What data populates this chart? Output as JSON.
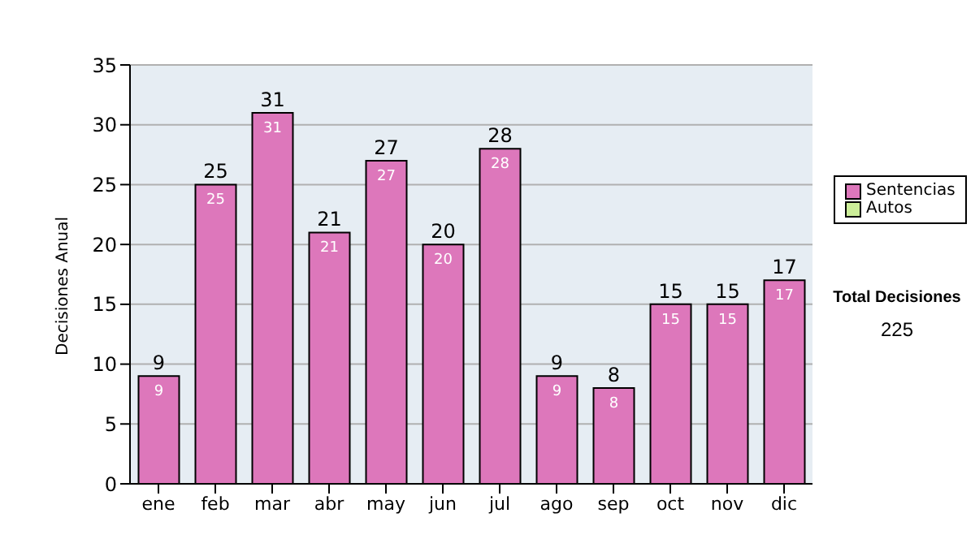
{
  "chart_data": {
    "type": "bar",
    "ylabel": "Decisiones Anual",
    "categories": [
      "ene",
      "feb",
      "mar",
      "abr",
      "may",
      "jun",
      "jul",
      "ago",
      "sep",
      "oct",
      "nov",
      "dic"
    ],
    "series": [
      {
        "name": "Sentencias",
        "color": "#dd77bb",
        "values": [
          9,
          25,
          31,
          21,
          27,
          20,
          28,
          9,
          8,
          15,
          15,
          17
        ],
        "value_labels": [
          "9",
          "25",
          "31",
          "21",
          "27",
          "20",
          "28",
          "9",
          "8",
          "15",
          "15",
          "17"
        ]
      },
      {
        "name": "Autos",
        "color": "#ccee99",
        "values": [
          null,
          null,
          null,
          null,
          null,
          null,
          null,
          null,
          null,
          null,
          null,
          null
        ]
      }
    ],
    "stacked": true,
    "totals": [
      "9",
      "25",
      "31",
      "21",
      "27",
      "20",
      "28",
      "9",
      "8",
      "15",
      "15",
      "17"
    ],
    "ylim": [
      0,
      35
    ],
    "yticks": [
      0,
      5,
      10,
      15,
      20,
      25,
      30,
      35
    ],
    "grid": "y",
    "legend": "right",
    "annotations": [
      "Total Decisiones",
      "225"
    ]
  }
}
